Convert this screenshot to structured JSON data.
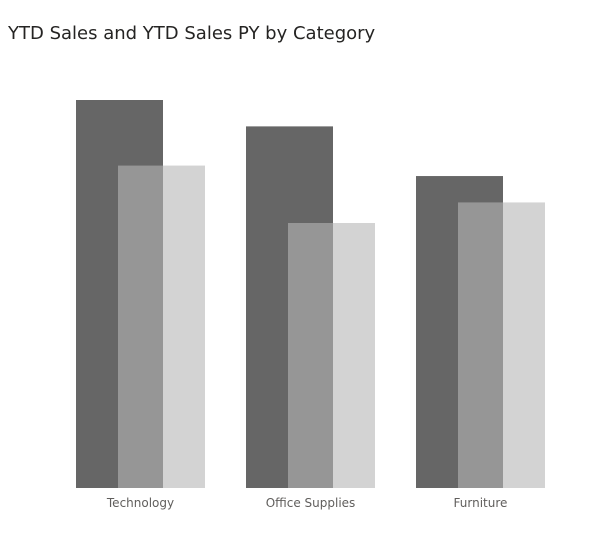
{
  "chart_data": {
    "type": "bar",
    "title": "YTD Sales and YTD Sales PY by Category",
    "categories": [
      "Technology",
      "Office Supplies",
      "Furniture"
    ],
    "series": [
      {
        "name": "YTD Sales",
        "values": [
          100,
          93.2,
          80.4
        ],
        "color": "#666666"
      },
      {
        "name": "YTD Sales PY",
        "values": [
          83.1,
          68.3,
          73.6
        ],
        "color": "#969696"
      },
      {
        "name": "",
        "values": [
          83.1,
          68.3,
          73.6
        ],
        "color": "#d3d3d3"
      }
    ],
    "ylim": [
      0,
      100
    ],
    "grid": false,
    "legend": "none",
    "xlabel": "",
    "ylabel": ""
  }
}
